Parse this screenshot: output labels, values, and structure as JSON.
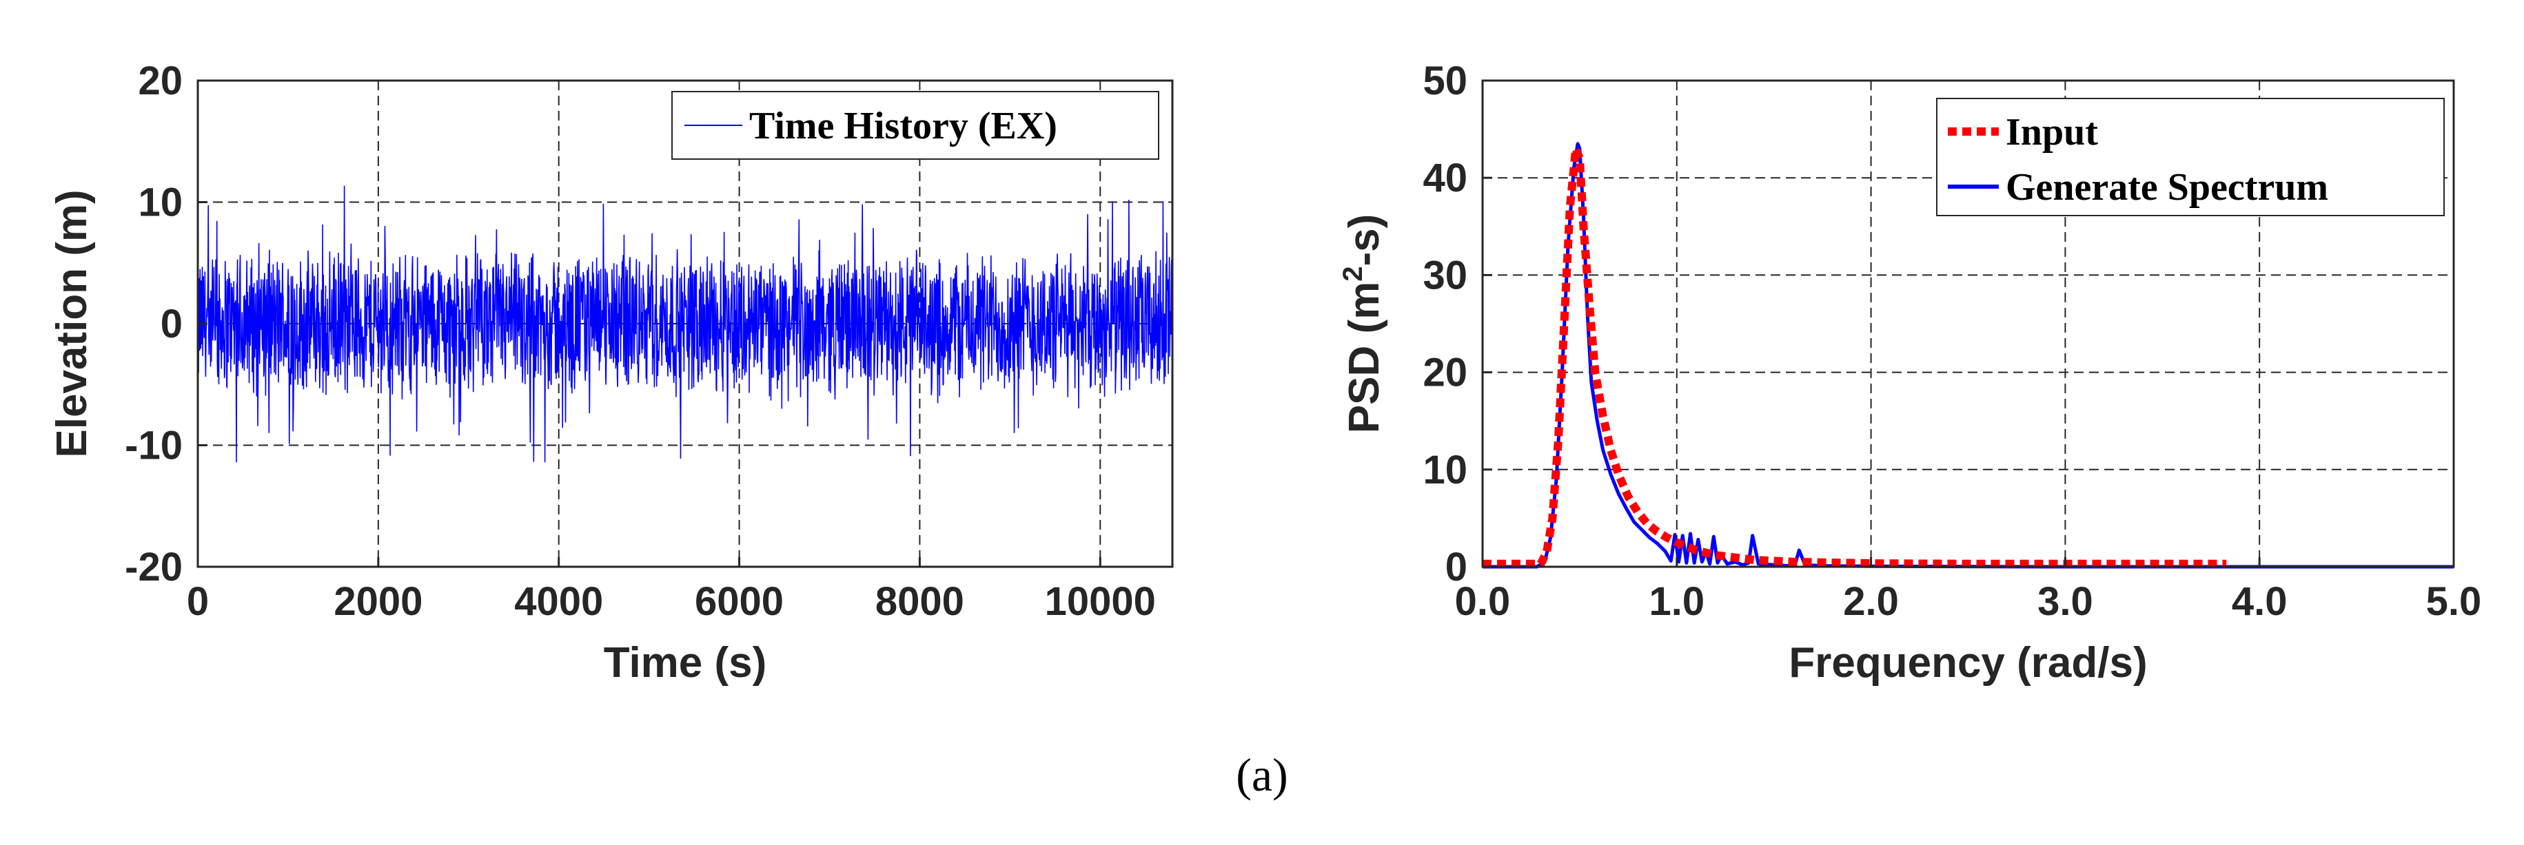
{
  "figure": {
    "caption": "(a)"
  },
  "chart_data": [
    {
      "type": "line",
      "title": "",
      "xlabel": "Time (s)",
      "ylabel": "Elevation (m)",
      "xlim": [
        0,
        10800
      ],
      "ylim": [
        -20,
        20
      ],
      "xticks": [
        0,
        2000,
        4000,
        6000,
        8000,
        10000
      ],
      "yticks": [
        -20,
        -10,
        0,
        10,
        20
      ],
      "xtick_labels": [
        "0",
        "2000",
        "4000",
        "6000",
        "8000",
        "10000"
      ],
      "ytick_labels": [
        "-20",
        "-10",
        "0",
        "10",
        "20"
      ],
      "grid": true,
      "legend_position": "top-right",
      "series": [
        {
          "name": "Time History (EX)",
          "color": "#0000ff",
          "description_values": {
            "mean": 0,
            "typical_amplitude": 6.5,
            "max": 11.5,
            "min": -11.5
          }
        }
      ]
    },
    {
      "type": "line",
      "title": "",
      "xlabel": "Frequency (rad/s)",
      "ylabel_parts": [
        "PSD (m",
        "2",
        "-s)"
      ],
      "xlim": [
        0,
        5
      ],
      "ylim": [
        0,
        50
      ],
      "xticks": [
        0,
        1,
        2,
        3,
        4,
        5
      ],
      "yticks": [
        0,
        10,
        20,
        30,
        40,
        50
      ],
      "xtick_labels": [
        "0.0",
        "1.0",
        "2.0",
        "3.0",
        "4.0",
        "5.0"
      ],
      "ytick_labels": [
        "0",
        "10",
        "20",
        "30",
        "40",
        "50"
      ],
      "grid": true,
      "legend_position": "top-right",
      "series": [
        {
          "name": "Input",
          "color": "#ff0000",
          "style": "dotted",
          "x": [
            0.0,
            0.25,
            0.3,
            0.33,
            0.36,
            0.39,
            0.42,
            0.45,
            0.48,
            0.5,
            0.52,
            0.55,
            0.58,
            0.62,
            0.66,
            0.7,
            0.75,
            0.8,
            0.85,
            0.9,
            0.95,
            1.0,
            1.1,
            1.2,
            1.4,
            1.6,
            2.0,
            2.5,
            3.0,
            3.5,
            3.83
          ],
          "y": [
            0.3,
            0.3,
            0.3,
            1.5,
            5.0,
            13.0,
            25.0,
            37.0,
            43.0,
            42.0,
            35.0,
            27.0,
            20.0,
            15.5,
            12.0,
            9.5,
            7.2,
            5.6,
            4.4,
            3.6,
            3.0,
            2.5,
            1.7,
            1.2,
            0.7,
            0.5,
            0.35,
            0.3,
            0.3,
            0.3,
            0.3
          ]
        },
        {
          "name": "Generate Spectrum",
          "color": "#0000ff",
          "style": "solid",
          "x": [
            0.0,
            0.28,
            0.32,
            0.35,
            0.38,
            0.41,
            0.44,
            0.47,
            0.49,
            0.5,
            0.52,
            0.54,
            0.56,
            0.59,
            0.62,
            0.66,
            0.7,
            0.74,
            0.78,
            0.82,
            0.86,
            0.9,
            0.94,
            0.97,
            0.99,
            1.01,
            1.03,
            1.05,
            1.07,
            1.09,
            1.11,
            1.13,
            1.15,
            1.17,
            1.19,
            1.21,
            1.23,
            1.26,
            1.3,
            1.34,
            1.37,
            1.39,
            1.42,
            1.5,
            1.58,
            1.61,
            1.63,
            1.66,
            1.75,
            2.0,
            3.0,
            4.0,
            5.0
          ],
          "y": [
            0.0,
            0.0,
            0.5,
            3.0,
            9.0,
            20.0,
            33.0,
            41.0,
            43.5,
            43.0,
            36.0,
            26.0,
            19.0,
            15.0,
            12.0,
            9.5,
            7.5,
            6.0,
            4.6,
            3.8,
            3.0,
            2.4,
            1.6,
            0.6,
            3.3,
            0.5,
            3.2,
            0.4,
            3.4,
            0.4,
            2.8,
            0.5,
            1.6,
            0.3,
            3.1,
            0.4,
            1.2,
            0.3,
            0.5,
            0.2,
            0.4,
            3.2,
            0.3,
            0.2,
            0.1,
            0.3,
            1.7,
            0.2,
            0.1,
            0.05,
            0.0,
            0.0,
            0.0
          ]
        }
      ]
    }
  ]
}
